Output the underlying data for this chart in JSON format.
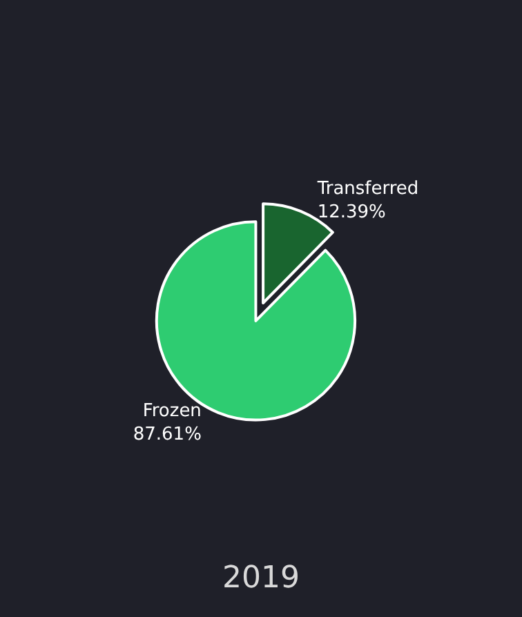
{
  "chart_data": {
    "type": "pie",
    "title": "2019",
    "categories": [
      "Transferred",
      "Frozen"
    ],
    "values": [
      12.39,
      87.61
    ],
    "colors": [
      "#19652f",
      "#2ecc71"
    ],
    "value_labels": [
      "12.39%",
      "87.61%"
    ]
  }
}
